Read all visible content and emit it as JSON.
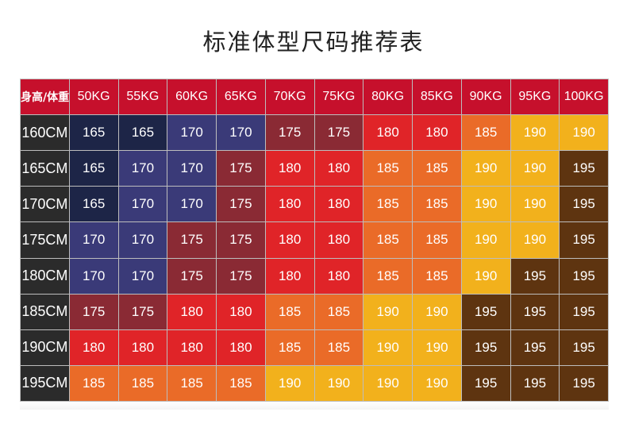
{
  "title": "标准体型尺码推荐表",
  "corner_label": "身高/体重",
  "weights": [
    "50KG",
    "55KG",
    "60KG",
    "65KG",
    "70KG",
    "75KG",
    "80KG",
    "85KG",
    "90KG",
    "95KG",
    "100KG"
  ],
  "rows": [
    {
      "height": "160CM",
      "sizes": [
        "165",
        "165",
        "170",
        "170",
        "175",
        "175",
        "180",
        "180",
        "185",
        "190",
        "190"
      ]
    },
    {
      "height": "165CM",
      "sizes": [
        "165",
        "170",
        "170",
        "175",
        "180",
        "180",
        "185",
        "185",
        "190",
        "190",
        "195"
      ]
    },
    {
      "height": "170CM",
      "sizes": [
        "165",
        "170",
        "170",
        "175",
        "180",
        "180",
        "185",
        "185",
        "190",
        "190",
        "195"
      ]
    },
    {
      "height": "175CM",
      "sizes": [
        "170",
        "170",
        "175",
        "175",
        "180",
        "180",
        "185",
        "185",
        "190",
        "190",
        "195"
      ]
    },
    {
      "height": "180CM",
      "sizes": [
        "170",
        "170",
        "175",
        "175",
        "180",
        "180",
        "185",
        "185",
        "190",
        "195",
        "195"
      ]
    },
    {
      "height": "185CM",
      "sizes": [
        "175",
        "175",
        "180",
        "180",
        "185",
        "185",
        "190",
        "190",
        "195",
        "195",
        "195"
      ]
    },
    {
      "height": "190CM",
      "sizes": [
        "180",
        "180",
        "180",
        "180",
        "185",
        "185",
        "190",
        "190",
        "195",
        "195",
        "195"
      ]
    },
    {
      "height": "195CM",
      "sizes": [
        "185",
        "185",
        "185",
        "185",
        "190",
        "190",
        "190",
        "190",
        "195",
        "195",
        "195"
      ]
    }
  ],
  "size_colors": {
    "165": "#1d2547",
    "170": "#3a3a78",
    "175": "#8a2a34",
    "180": "#e02428",
    "185": "#ea6b28",
    "190": "#f2b11c",
    "195": "#5e3410"
  },
  "colors": {
    "header_bg": "#c6102c",
    "rowhead_bg": "#2b2b2b"
  }
}
